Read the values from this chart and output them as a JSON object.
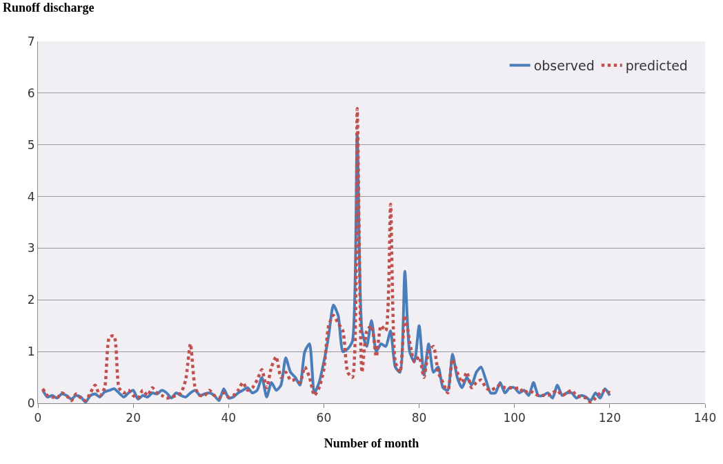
{
  "chart_data": {
    "type": "line",
    "ylabel": "Runoff discharge",
    "xlabel": "Number of month",
    "x": [
      1,
      2,
      3,
      4,
      5,
      6,
      7,
      8,
      9,
      10,
      11,
      12,
      13,
      14,
      15,
      16,
      17,
      18,
      19,
      20,
      21,
      22,
      23,
      24,
      25,
      26,
      27,
      28,
      29,
      30,
      31,
      32,
      33,
      34,
      35,
      36,
      37,
      38,
      39,
      40,
      41,
      42,
      43,
      44,
      45,
      46,
      47,
      48,
      49,
      50,
      51,
      52,
      53,
      54,
      55,
      56,
      57,
      58,
      59,
      60,
      61,
      62,
      63,
      64,
      65,
      66,
      67,
      68,
      69,
      70,
      71,
      72,
      73,
      74,
      75,
      76,
      77,
      78,
      79,
      80,
      81,
      82,
      83,
      84,
      85,
      86,
      87,
      88,
      89,
      90,
      91,
      92,
      93,
      94,
      95,
      96,
      97,
      98,
      99,
      100,
      101,
      102,
      103,
      104,
      105,
      106,
      107,
      108,
      109,
      110,
      111,
      112,
      113,
      114,
      115,
      116,
      117,
      118,
      119,
      120
    ],
    "series": [
      {
        "name": "observed",
        "color": "#4a7ebb",
        "line_style": "solid",
        "values": [
          0.25,
          0.12,
          0.15,
          0.1,
          0.18,
          0.15,
          0.08,
          0.15,
          0.12,
          0.02,
          0.15,
          0.18,
          0.12,
          0.22,
          0.25,
          0.28,
          0.2,
          0.12,
          0.2,
          0.25,
          0.08,
          0.15,
          0.12,
          0.2,
          0.18,
          0.25,
          0.2,
          0.1,
          0.2,
          0.15,
          0.12,
          0.2,
          0.25,
          0.15,
          0.18,
          0.2,
          0.15,
          0.05,
          0.28,
          0.1,
          0.12,
          0.2,
          0.25,
          0.3,
          0.2,
          0.25,
          0.5,
          0.12,
          0.4,
          0.25,
          0.35,
          0.88,
          0.6,
          0.5,
          0.35,
          1.0,
          1.15,
          0.2,
          0.4,
          0.8,
          1.3,
          1.9,
          1.7,
          1.0,
          1.05,
          1.2,
          5.2,
          1.4,
          1.1,
          1.6,
          1.0,
          1.15,
          1.1,
          1.4,
          0.7,
          0.6,
          2.55,
          1.0,
          0.8,
          1.5,
          0.55,
          1.15,
          0.6,
          0.7,
          0.3,
          0.25,
          0.95,
          0.5,
          0.3,
          0.5,
          0.35,
          0.6,
          0.7,
          0.45,
          0.2,
          0.2,
          0.4,
          0.2,
          0.3,
          0.3,
          0.2,
          0.25,
          0.15,
          0.4,
          0.15,
          0.15,
          0.2,
          0.1,
          0.35,
          0.15,
          0.2,
          0.2,
          0.1,
          0.15,
          0.12,
          0.05,
          0.2,
          0.1,
          0.28,
          0.15
        ]
      },
      {
        "name": "predicted",
        "color": "#c0504d",
        "line_style": "dotted",
        "values": [
          0.28,
          0.15,
          0.12,
          0.1,
          0.2,
          0.15,
          0.05,
          0.18,
          0.1,
          0.05,
          0.2,
          0.35,
          0.15,
          0.3,
          1.28,
          1.3,
          0.3,
          0.2,
          0.25,
          0.15,
          0.1,
          0.25,
          0.15,
          0.3,
          0.2,
          0.15,
          0.1,
          0.12,
          0.15,
          0.2,
          0.45,
          1.15,
          0.3,
          0.15,
          0.15,
          0.25,
          0.15,
          0.1,
          0.2,
          0.12,
          0.15,
          0.25,
          0.4,
          0.25,
          0.3,
          0.45,
          0.65,
          0.3,
          0.7,
          0.9,
          0.5,
          0.6,
          0.45,
          0.45,
          0.4,
          0.7,
          0.5,
          0.15,
          0.3,
          0.65,
          1.5,
          1.7,
          1.55,
          1.4,
          0.6,
          0.5,
          5.7,
          0.6,
          1.4,
          1.5,
          0.9,
          1.5,
          1.4,
          3.85,
          0.8,
          0.6,
          1.7,
          1.2,
          0.8,
          0.9,
          0.5,
          1.0,
          1.1,
          0.6,
          0.4,
          0.2,
          0.85,
          0.6,
          0.4,
          0.6,
          0.3,
          0.4,
          0.45,
          0.3,
          0.25,
          0.3,
          0.35,
          0.3,
          0.3,
          0.28,
          0.3,
          0.2,
          0.25,
          0.2,
          0.15,
          0.15,
          0.15,
          0.2,
          0.25,
          0.15,
          0.2,
          0.25,
          0.15,
          0.12,
          0.1,
          0.02,
          0.1,
          0.2,
          0.25,
          0.2
        ]
      }
    ],
    "xlim": [
      0,
      140
    ],
    "xticks": [
      0,
      20,
      40,
      60,
      80,
      100,
      120,
      140
    ],
    "ylim": [
      0,
      7
    ],
    "yticks": [
      0,
      1,
      2,
      3,
      4,
      5,
      6,
      7
    ],
    "grid": "y",
    "legend": "top right",
    "marker": "none"
  }
}
